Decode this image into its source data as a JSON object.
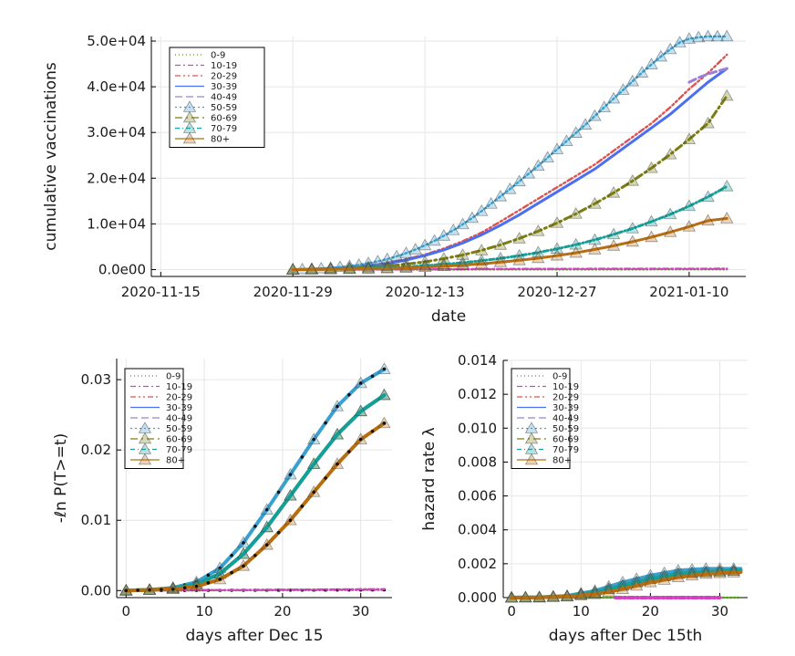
{
  "legend_labels": [
    "0-9",
    "10-19",
    "20-29",
    "30-39",
    "40-49",
    "50-59",
    "60-69",
    "70-79",
    "80+"
  ],
  "colors": [
    "#5a9a28",
    "#d441c0",
    "#e0504e",
    "#4a6ff0",
    "#9c7fd8",
    "#3aa0d0",
    "#7a7d10",
    "#11a09a",
    "#b86e10"
  ],
  "chart_data": [
    {
      "type": "line",
      "ylabel": "cumulative vaccinations",
      "xlabel": "date",
      "xticks": [
        "2020-11-15",
        "2020-11-29",
        "2020-12-13",
        "2020-12-27",
        "2021-01-10"
      ],
      "yticks": [
        "0.0e00",
        "1.0e+04",
        "2.0e+04",
        "3.0e+04",
        "4.0e+04",
        "5.0e+04"
      ],
      "x_range_days_from_2020_11_15": [
        -1,
        62
      ],
      "ylim": [
        -1500,
        51000
      ],
      "series": [
        {
          "name": "0-9",
          "x": [
            14,
            20,
            25,
            30,
            35,
            39,
            60
          ],
          "y": [
            0,
            0,
            10,
            20,
            30,
            40,
            60
          ]
        },
        {
          "name": "10-19",
          "x": [
            14,
            20,
            25,
            30,
            35,
            39,
            60
          ],
          "y": [
            0,
            10,
            40,
            80,
            120,
            150,
            200
          ]
        },
        {
          "name": "20-29",
          "x": [
            14,
            16,
            18,
            20,
            22,
            24,
            26,
            28,
            30,
            32,
            34,
            36,
            38,
            40,
            42,
            44,
            46,
            48,
            50,
            52,
            54,
            56,
            58,
            60
          ],
          "y": [
            0,
            100,
            250,
            500,
            900,
            1500,
            2300,
            3300,
            4600,
            6200,
            8100,
            10500,
            13000,
            15500,
            18000,
            20500,
            23000,
            26000,
            29000,
            32000,
            35500,
            39500,
            43000,
            47000
          ]
        },
        {
          "name": "30-39",
          "x": [
            14,
            16,
            18,
            20,
            22,
            24,
            26,
            28,
            30,
            32,
            34,
            36,
            38,
            40,
            42,
            44,
            46,
            48,
            50,
            52,
            54,
            56,
            58,
            60
          ],
          "y": [
            0,
            100,
            250,
            450,
            800,
            1300,
            2100,
            3100,
            4300,
            5800,
            7600,
            9700,
            12000,
            14500,
            17000,
            19500,
            22000,
            25000,
            28000,
            31000,
            34000,
            37500,
            41000,
            44000
          ]
        },
        {
          "name": "40-49",
          "x": [
            56,
            57,
            58,
            59,
            60
          ],
          "y": [
            41000,
            42000,
            42800,
            43400,
            44000
          ]
        },
        {
          "name": "50-59",
          "x": [
            14,
            15,
            16,
            17,
            18,
            19,
            20,
            21,
            22,
            23,
            24,
            25,
            26,
            27,
            28,
            29,
            30,
            31,
            32,
            33,
            34,
            35,
            36,
            37,
            38,
            39,
            40,
            41,
            42,
            43,
            44,
            45,
            46,
            47,
            48,
            49,
            50,
            51,
            52,
            53,
            54,
            55,
            56,
            57,
            58,
            59,
            60
          ],
          "y": [
            0,
            60,
            150,
            250,
            380,
            550,
            780,
            1050,
            1400,
            1800,
            2300,
            2900,
            3600,
            4400,
            5300,
            6300,
            7400,
            8600,
            9900,
            11300,
            12800,
            14400,
            16000,
            17600,
            19300,
            21000,
            22700,
            24500,
            26300,
            28100,
            29900,
            31700,
            33600,
            35500,
            37400,
            39300,
            41200,
            43100,
            44900,
            46600,
            48200,
            49700,
            50500,
            50800,
            51000,
            51000,
            51000
          ]
        },
        {
          "name": "60-69",
          "x": [
            14,
            16,
            18,
            20,
            22,
            24,
            26,
            28,
            30,
            32,
            34,
            36,
            38,
            40,
            42,
            44,
            46,
            48,
            50,
            52,
            54,
            56,
            58,
            60
          ],
          "y": [
            0,
            60,
            150,
            300,
            500,
            800,
            1200,
            1700,
            2400,
            3200,
            4200,
            5400,
            6800,
            8400,
            10200,
            12200,
            14400,
            16800,
            19400,
            22200,
            25200,
            28500,
            32000,
            38000
          ]
        },
        {
          "name": "70-79",
          "x": [
            14,
            16,
            18,
            20,
            22,
            24,
            26,
            28,
            30,
            32,
            34,
            36,
            38,
            40,
            42,
            44,
            46,
            48,
            50,
            52,
            54,
            56,
            58,
            60
          ],
          "y": [
            0,
            30,
            80,
            150,
            250,
            400,
            600,
            850,
            1150,
            1500,
            1950,
            2450,
            3050,
            3750,
            4550,
            5450,
            6500,
            7700,
            9000,
            10500,
            12100,
            13900,
            15900,
            18200
          ]
        },
        {
          "name": "80+",
          "x": [
            14,
            16,
            18,
            20,
            22,
            24,
            26,
            28,
            30,
            32,
            34,
            36,
            38,
            40,
            42,
            44,
            46,
            48,
            50,
            52,
            54,
            56,
            58,
            60
          ],
          "y": [
            0,
            20,
            50,
            100,
            170,
            260,
            380,
            540,
            740,
            980,
            1270,
            1620,
            2030,
            2500,
            3050,
            3680,
            4400,
            5200,
            6100,
            7100,
            8200,
            9400,
            10700,
            11200
          ]
        }
      ]
    },
    {
      "type": "line",
      "ylabel": "-ℓn P(T>=t)",
      "xlabel": "days after Dec 15",
      "xticks": [
        0,
        10,
        20,
        30
      ],
      "yticks": [
        0.0,
        0.01,
        0.02,
        0.03
      ],
      "ytick_labels": [
        "0.00",
        "0.01",
        "0.02",
        "0.03"
      ],
      "xlim": [
        -1.2,
        34
      ],
      "ylim": [
        -0.001,
        0.033
      ],
      "series": [
        {
          "name": "0-9",
          "x": [
            0,
            33
          ],
          "y": [
            0,
            0.0001
          ]
        },
        {
          "name": "10-19",
          "x": [
            0,
            33
          ],
          "y": [
            0,
            0.0002
          ]
        },
        {
          "name": "20-29",
          "x": [
            0,
            3,
            6,
            9,
            12,
            15,
            18,
            21,
            24,
            27,
            30,
            33
          ],
          "y": [
            0,
            0.0001,
            0.0004,
            0.0012,
            0.0032,
            0.0068,
            0.0115,
            0.0165,
            0.0215,
            0.0262,
            0.0295,
            0.0315
          ]
        },
        {
          "name": "30-39",
          "x": [
            0,
            3,
            6,
            9,
            12,
            15,
            18,
            21,
            24,
            27,
            30,
            33
          ],
          "y": [
            0,
            0.0001,
            0.0004,
            0.0012,
            0.0032,
            0.0068,
            0.0115,
            0.0165,
            0.0215,
            0.0262,
            0.0295,
            0.0315
          ]
        },
        {
          "name": "40-49",
          "x": [
            0,
            3,
            6,
            9,
            12,
            15,
            18,
            21,
            24,
            27,
            30,
            33
          ],
          "y": [
            0,
            0.0001,
            0.0004,
            0.0012,
            0.0032,
            0.0068,
            0.0115,
            0.0165,
            0.0215,
            0.0262,
            0.0295,
            0.0315
          ]
        },
        {
          "name": "50-59",
          "x": [
            0,
            3,
            6,
            9,
            12,
            15,
            18,
            21,
            24,
            27,
            30,
            33
          ],
          "y": [
            0,
            0.0001,
            0.0004,
            0.0012,
            0.0032,
            0.0068,
            0.0115,
            0.0165,
            0.0215,
            0.0262,
            0.0295,
            0.0315
          ]
        },
        {
          "name": "60-69",
          "x": [
            0,
            3,
            6,
            9,
            12,
            15,
            18,
            21,
            24,
            27,
            30,
            33
          ],
          "y": [
            0,
            0.0001,
            0.0003,
            0.0009,
            0.0024,
            0.0052,
            0.009,
            0.0135,
            0.018,
            0.0222,
            0.0255,
            0.0278
          ]
        },
        {
          "name": "70-79",
          "x": [
            0,
            3,
            6,
            9,
            12,
            15,
            18,
            21,
            24,
            27,
            30,
            33
          ],
          "y": [
            0,
            0.0001,
            0.0003,
            0.0009,
            0.0024,
            0.0052,
            0.009,
            0.0135,
            0.018,
            0.0222,
            0.0255,
            0.0278
          ]
        },
        {
          "name": "80+",
          "x": [
            0,
            3,
            6,
            9,
            12,
            15,
            18,
            21,
            24,
            27,
            30,
            33
          ],
          "y": [
            0,
            0.0001,
            0.0002,
            0.0006,
            0.0016,
            0.0035,
            0.0065,
            0.01,
            0.014,
            0.018,
            0.0215,
            0.0238
          ]
        }
      ]
    },
    {
      "type": "line",
      "ylabel": "hazard rate λ",
      "xlabel": "days after Dec 15th",
      "xticks": [
        0,
        10,
        20,
        30
      ],
      "yticks": [
        0.0,
        0.002,
        0.004,
        0.006,
        0.008,
        0.01,
        0.012,
        0.014
      ],
      "ytick_labels": [
        "0.000",
        "0.002",
        "0.004",
        "0.006",
        "0.008",
        "0.010",
        "0.012",
        "0.014"
      ],
      "xlim": [
        -1.2,
        34
      ],
      "ylim": [
        0,
        0.014
      ],
      "series": [
        {
          "name": "0-9",
          "x": [
            0,
            33
          ],
          "y": [
            0,
            0
          ]
        },
        {
          "name": "10-19",
          "x": [
            15,
            30
          ],
          "y": [
            0,
            0
          ]
        },
        {
          "name": "20-29",
          "x": [
            0,
            4,
            8,
            12,
            16,
            20,
            24,
            28,
            33
          ],
          "y": [
            0,
            2e-05,
            0.0001,
            0.0004,
            0.0009,
            0.0013,
            0.0015,
            0.0016,
            0.0016
          ]
        },
        {
          "name": "30-39",
          "x": [
            0,
            4,
            8,
            12,
            16,
            20,
            24,
            28,
            33
          ],
          "y": [
            0,
            2e-05,
            0.0001,
            0.0004,
            0.0009,
            0.0013,
            0.0016,
            0.0017,
            0.0017
          ]
        },
        {
          "name": "40-49",
          "x": [
            0,
            4,
            8,
            12,
            16,
            20,
            24,
            28,
            33
          ],
          "y": [
            0,
            2e-05,
            0.0001,
            0.0004,
            0.0009,
            0.0013,
            0.0015,
            0.0016,
            0.0016
          ]
        },
        {
          "name": "50-59",
          "x": [
            0,
            4,
            8,
            12,
            16,
            20,
            24,
            28,
            33
          ],
          "y": [
            0,
            2e-05,
            0.0001,
            0.0004,
            0.0009,
            0.0013,
            0.0016,
            0.0017,
            0.0017
          ]
        },
        {
          "name": "60-69",
          "x": [
            0,
            4,
            8,
            12,
            16,
            20,
            24,
            28,
            33
          ],
          "y": [
            0,
            1e-05,
            8e-05,
            0.0003,
            0.0007,
            0.0011,
            0.0014,
            0.0015,
            0.0016
          ]
        },
        {
          "name": "70-79",
          "x": [
            0,
            4,
            8,
            12,
            16,
            20,
            24,
            28,
            33
          ],
          "y": [
            0,
            1e-05,
            8e-05,
            0.0003,
            0.0007,
            0.0011,
            0.0014,
            0.0015,
            0.0016
          ]
        },
        {
          "name": "80+",
          "x": [
            0,
            4,
            8,
            12,
            16,
            20,
            24,
            28,
            33
          ],
          "y": [
            0,
            1e-05,
            6e-05,
            0.0002,
            0.0005,
            0.0009,
            0.0012,
            0.0014,
            0.0015
          ]
        }
      ]
    }
  ]
}
